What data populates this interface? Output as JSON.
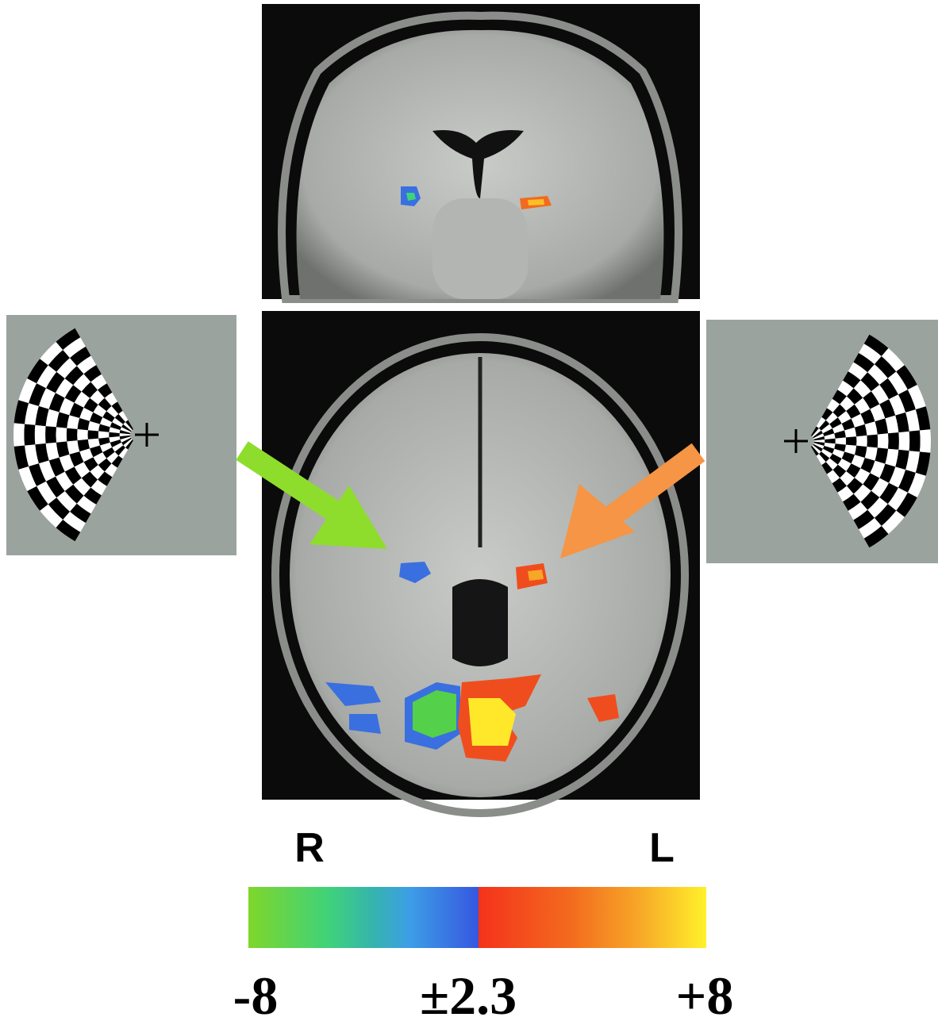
{
  "labels": {
    "right_hemisphere": "R",
    "left_hemisphere": "L"
  },
  "colorbar": {
    "labels": [
      "-8",
      "±2.3",
      "+8"
    ]
  }
}
